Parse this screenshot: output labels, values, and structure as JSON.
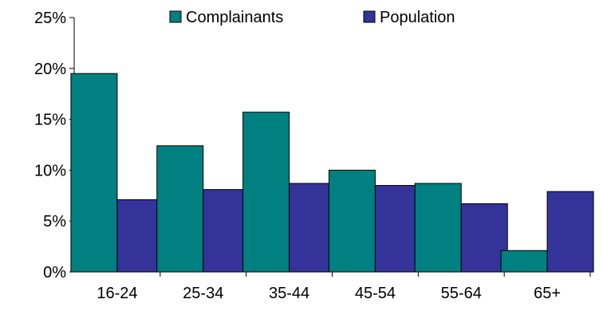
{
  "chart_data": {
    "type": "bar",
    "categories": [
      "16-24",
      "25-34",
      "35-44",
      "45-54",
      "55-64",
      "65+"
    ],
    "series": [
      {
        "name": "Complainants",
        "values": [
          19.5,
          12.4,
          15.7,
          10.0,
          8.7,
          2.1
        ],
        "color": "#008080"
      },
      {
        "name": "Population",
        "values": [
          7.1,
          8.1,
          8.7,
          8.5,
          6.7,
          7.9
        ],
        "color": "#333399"
      }
    ],
    "ylim": [
      0,
      25
    ],
    "yticks": [
      "0%",
      "5%",
      "10%",
      "15%",
      "20%",
      "25%"
    ],
    "title": "",
    "xlabel": "",
    "ylabel": "",
    "grid": false,
    "legend": "top"
  }
}
